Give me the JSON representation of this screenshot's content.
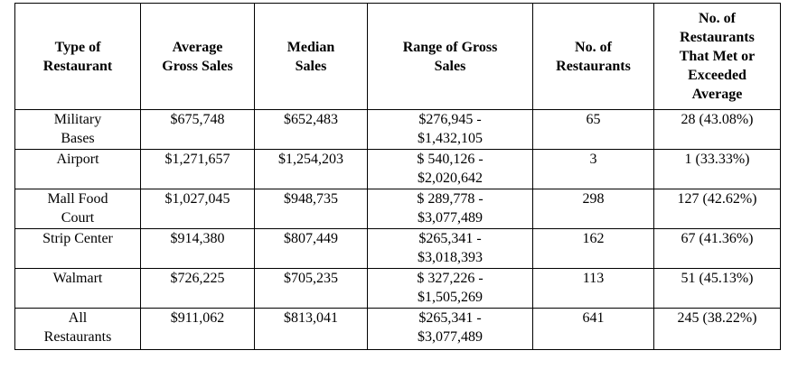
{
  "table": {
    "headers": [
      "Type of\nRestaurant",
      "Average\nGross Sales",
      "Median\nSales",
      "Range of Gross\nSales",
      "No. of\nRestaurants",
      "No. of\nRestaurants\nThat Met or\nExceeded\nAverage"
    ],
    "rows": [
      {
        "type": "Military\nBases",
        "average": "$675,748",
        "median": "$652,483",
        "range": "$276,945 -\n$1,432,105",
        "count": "65",
        "met": "28 (43.08%)"
      },
      {
        "type": "Airport",
        "average": "$1,271,657",
        "median": "$1,254,203",
        "range": "$ 540,126 -\n$2,020,642",
        "count": "3",
        "met": "1 (33.33%)"
      },
      {
        "type": "Mall Food\nCourt",
        "average": "$1,027,045",
        "median": "$948,735",
        "range": "$ 289,778 -\n$3,077,489",
        "count": "298",
        "met": "127 (42.62%)"
      },
      {
        "type": "Strip Center",
        "average": "$914,380",
        "median": "$807,449",
        "range": "$265,341 -\n$3,018,393",
        "count": "162",
        "met": "67 (41.36%)"
      },
      {
        "type": "Walmart",
        "average": "$726,225",
        "median": "$705,235",
        "range": "$ 327,226 -\n$1,505,269",
        "count": "113",
        "met": "51 (45.13%)"
      },
      {
        "type": "All\nRestaurants",
        "average": "$911,062",
        "median": "$813,041",
        "range": "$265,341 -\n$3,077,489",
        "count": "641",
        "met": "245 (38.22%)"
      }
    ]
  }
}
